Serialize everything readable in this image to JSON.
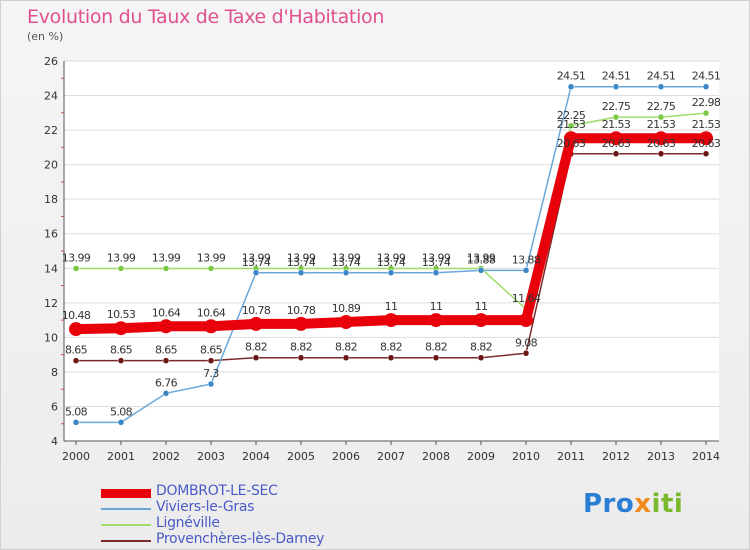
{
  "title": "Evolution du Taux de Taxe d'Habitation",
  "unit_label": "(en %)",
  "logo": {
    "part1": "Pro",
    "part2": "x",
    "part3": "iti"
  },
  "chart_data": {
    "type": "line",
    "title": "Evolution du Taux de Taxe d'Habitation",
    "ylabel": "(en %)",
    "xlabel": "",
    "ylim": [
      4,
      26
    ],
    "yticks": [
      4,
      6,
      8,
      10,
      12,
      14,
      16,
      18,
      20,
      22,
      24,
      26
    ],
    "categories": [
      "2000",
      "2001",
      "2002",
      "2003",
      "2004",
      "2005",
      "2006",
      "2007",
      "2008",
      "2009",
      "2010",
      "2011",
      "2012",
      "2013",
      "2014"
    ],
    "grid": "horizontal",
    "legend_position": "bottom-left",
    "series": [
      {
        "name": "DOMBROT-LE-SEC",
        "color": "#e8000b",
        "emphasis": "thick",
        "values": [
          10.48,
          10.53,
          10.64,
          10.64,
          10.78,
          10.78,
          10.89,
          11,
          11,
          11,
          11,
          21.53,
          21.53,
          21.53,
          21.53
        ],
        "labels": [
          "10.48",
          "10.53",
          "10.64",
          "10.64",
          "10.78",
          "10.78",
          "10.89",
          "11",
          "11",
          "11",
          "",
          "21.53",
          "21.53",
          "21.53",
          "21.53"
        ]
      },
      {
        "name": "Viviers-le-Gras",
        "color": "#6aa7d9",
        "point_color": "#3a87c8",
        "values": [
          5.08,
          5.08,
          6.76,
          7.3,
          13.74,
          13.74,
          13.74,
          13.74,
          13.74,
          13.88,
          13.88,
          24.51,
          24.51,
          24.51,
          24.51
        ],
        "labels": [
          "5.08",
          "5.08",
          "6.76",
          "7.3",
          "13.74",
          "13.74",
          "13.74",
          "13.74",
          "13.74",
          "13.88",
          "13.88",
          "24.51",
          "24.51",
          "24.51",
          "24.51"
        ]
      },
      {
        "name": "Lignéville",
        "color": "#9fdc6a",
        "point_color": "#7ac943",
        "values": [
          13.99,
          13.99,
          13.99,
          13.99,
          13.99,
          13.99,
          13.99,
          13.99,
          13.99,
          13.99,
          11.64,
          22.25,
          22.75,
          22.75,
          22.98
        ],
        "labels": [
          "13.99",
          "13.99",
          "13.99",
          "13.99",
          "13.99",
          "13.99",
          "13.99",
          "13.99",
          "13.99",
          "13.99",
          "11.64",
          "22.25",
          "22.75",
          "22.75",
          "22.98"
        ]
      },
      {
        "name": "Provenchères-lès-Darney",
        "color": "#7a2a2a",
        "point_color": "#6b1515",
        "values": [
          8.65,
          8.65,
          8.65,
          8.65,
          8.82,
          8.82,
          8.82,
          8.82,
          8.82,
          8.82,
          9.08,
          20.63,
          20.63,
          20.63,
          20.63
        ],
        "labels": [
          "8.65",
          "8.65",
          "8.65",
          "8.65",
          "8.82",
          "8.82",
          "8.82",
          "8.82",
          "8.82",
          "8.82",
          "9.08",
          "20.63",
          "20.63",
          "20.63",
          "20.63"
        ]
      }
    ]
  }
}
